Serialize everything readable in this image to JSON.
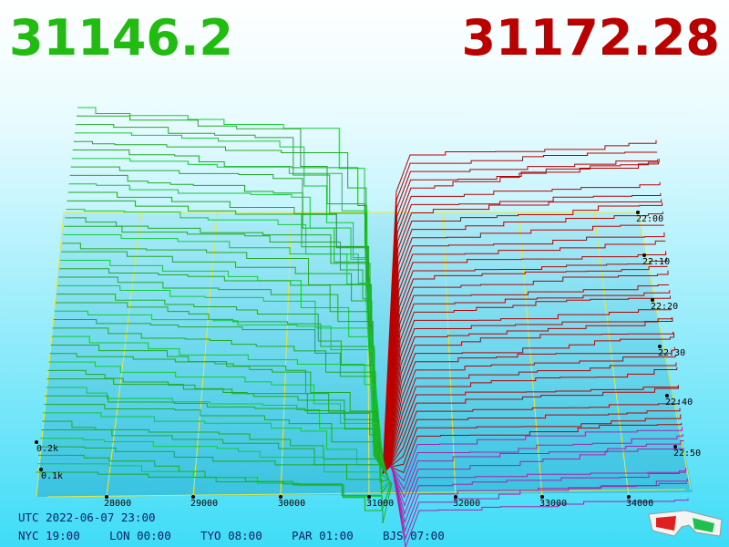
{
  "header": {
    "bid": "31146.2",
    "ask": "31172.28"
  },
  "price_axis": {
    "ticks": [
      "28000",
      "29000",
      "30000",
      "31000",
      "32000",
      "33000",
      "34000"
    ]
  },
  "time_axis": {
    "ticks": [
      "22:00",
      "22:10",
      "22:20",
      "22:30",
      "22:40",
      "22:50"
    ]
  },
  "depth_axis": {
    "ticks": [
      "0.2k",
      "0.1k"
    ]
  },
  "footer": {
    "utc": "UTC 2022-06-07 23:00",
    "cities": [
      "NYC 19:00",
      "LON 00:00",
      "TYO 08:00",
      "PAR 01:00",
      "BJS 07:00"
    ]
  }
}
